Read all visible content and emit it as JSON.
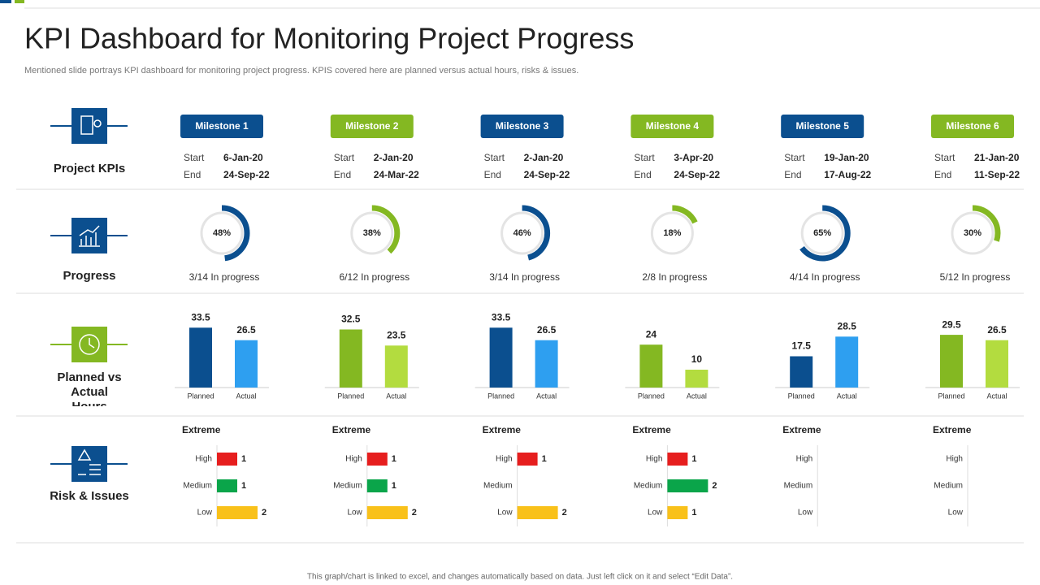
{
  "header": {
    "title": "KPI Dashboard for Monitoring Project Progress",
    "subtitle": "Mentioned slide portrays KPI dashboard for monitoring project progress. KPIS covered here are planned versus actual hours, risks & issues."
  },
  "rows": [
    "Project KPIs",
    "Progress",
    "Planned vs Actual Hours",
    "Risk & Issues"
  ],
  "labels": {
    "start": "Start",
    "end": "End",
    "planned": "Planned",
    "actual": "Actual",
    "extreme": "Extreme",
    "levels": [
      "High",
      "Medium",
      "Low"
    ]
  },
  "milestones": [
    {
      "name": "Milestone 1",
      "start": "6-Jan-20",
      "end": "24-Sep-22",
      "progress": 48,
      "progress_label": "48%",
      "status": "3/14 In progress",
      "planned": 33.5,
      "actual": 26.5,
      "risks": [
        1,
        1,
        2
      ]
    },
    {
      "name": "Milestone 2",
      "start": "2-Jan-20",
      "end": "24-Mar-22",
      "progress": 38,
      "progress_label": "38%",
      "status": "6/12 In progress",
      "planned": 32.5,
      "actual": 23.5,
      "risks": [
        1,
        1,
        2
      ]
    },
    {
      "name": "Milestone 3",
      "start": "2-Jan-20",
      "end": "24-Sep-22",
      "progress": 46,
      "progress_label": "46%",
      "status": "3/14 In progress",
      "planned": 33.5,
      "actual": 26.5,
      "risks": [
        1,
        null,
        2
      ]
    },
    {
      "name": "Milestone 4",
      "start": "3-Apr-20",
      "end": "24-Sep-22",
      "progress": 18,
      "progress_label": "18%",
      "status": "2/8 In progress",
      "planned": 24,
      "actual": 10,
      "risks": [
        1,
        2,
        1
      ]
    },
    {
      "name": "Milestone 5",
      "start": "19-Jan-20",
      "end": "17-Aug-22",
      "progress": 65,
      "progress_label": "65%",
      "status": "4/14 In progress",
      "planned": 17.5,
      "actual": 28.5,
      "risks": [
        null,
        null,
        null
      ]
    },
    {
      "name": "Milestone 6",
      "start": "21-Jan-20",
      "end": "11-Sep-22",
      "progress": 30,
      "progress_label": "30%",
      "status": "5/12 In progress",
      "planned": 29.5,
      "actual": 26.5,
      "risks": [
        null,
        null,
        null
      ]
    }
  ],
  "footer": "This graph/chart is linked to excel, and changes automatically based on data. Just left click on it and select “Edit Data”."
}
